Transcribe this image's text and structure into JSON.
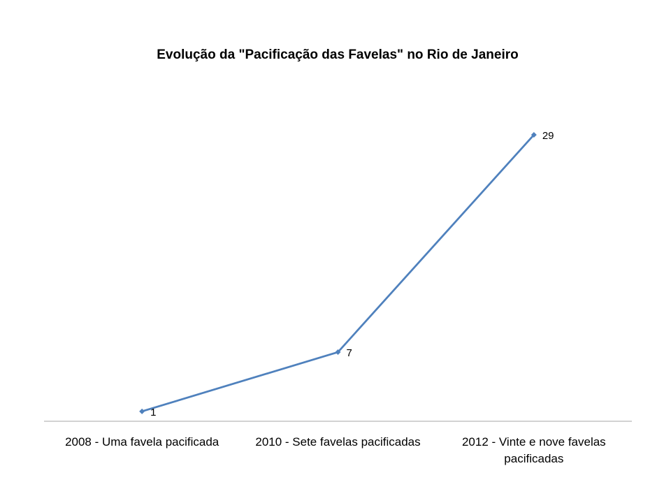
{
  "chart_data": {
    "type": "line",
    "title": "Evolução da \"Pacificação das Favelas\" no Rio de Janeiro",
    "categories": [
      "2008 - Uma favela pacificada",
      "2010 - Sete favelas pacificadas",
      "2012 - Vinte e nove favelas pacificadas"
    ],
    "category_label_lines": [
      [
        "2008 - Uma favela pacificada"
      ],
      [
        "2010 - Sete favelas pacificadas"
      ],
      [
        "2012 - Vinte e nove favelas",
        "pacificadas"
      ]
    ],
    "series": [
      {
        "values": [
          1,
          7,
          29
        ],
        "color": "#4f81bd"
      }
    ],
    "data_labels": [
      "1",
      "7",
      "29"
    ],
    "ylim": [
      0,
      29
    ],
    "y_axis_visible": false,
    "grid": false,
    "legend": "none",
    "axis_color": "#a6a6a6"
  }
}
